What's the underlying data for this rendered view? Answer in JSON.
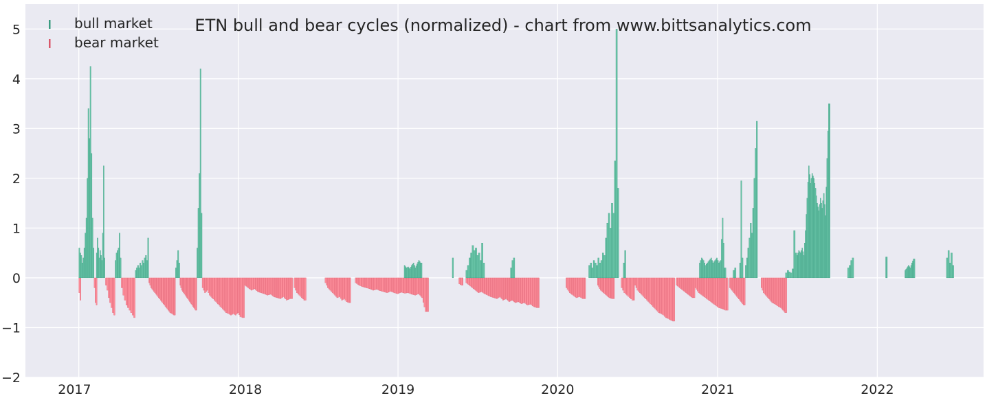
{
  "chart_data": {
    "type": "bar",
    "title": "ETN bull and bear cycles (normalized)  - chart from www.bittsanalytics.com",
    "xlabel": "",
    "ylabel": "",
    "ylim": [
      -2,
      5.5
    ],
    "x_range": [
      "2016-09-01",
      "2022-09-01"
    ],
    "y_ticks": [
      {
        "value": 5,
        "label": "5"
      },
      {
        "value": 4,
        "label": "4"
      },
      {
        "value": 3,
        "label": "3"
      },
      {
        "value": 2,
        "label": "2"
      },
      {
        "value": 1,
        "label": "1"
      },
      {
        "value": 0,
        "label": "0"
      },
      {
        "value": -1,
        "label": "−1"
      },
      {
        "value": -2,
        "label": "−2"
      }
    ],
    "x_ticks": [
      {
        "date": "2017-01-01",
        "label": "2017"
      },
      {
        "date": "2018-01-01",
        "label": "2018"
      },
      {
        "date": "2019-01-01",
        "label": "2019"
      },
      {
        "date": "2020-01-01",
        "label": "2020"
      },
      {
        "date": "2021-01-01",
        "label": "2021"
      },
      {
        "date": "2022-01-01",
        "label": "2022"
      }
    ],
    "grid": true,
    "legend_position": "top-left",
    "colors": {
      "background": "#eaeaf2",
      "grid": "#ffffff",
      "bull": "#66c2a5",
      "bull_edge": "#3a9c80",
      "bear": "#fc8d9a",
      "bear_edge": "#d9576a"
    },
    "series": [
      {
        "name": "bull market",
        "segments": [
          {
            "start": "2017-01-01",
            "end": "2017-02-05",
            "values": [
              0.6,
              0.5,
              0.45,
              0.3,
              0.4,
              0.6,
              0.9,
              1.2,
              2.0,
              3.4,
              2.8,
              4.25,
              2.5,
              1.2,
              0.6
            ]
          },
          {
            "start": "2017-02-10",
            "end": "2017-03-02",
            "values": [
              0.5,
              0.8,
              0.6,
              0.4,
              0.55,
              0.45,
              0.35,
              0.9,
              2.25,
              0.4
            ]
          },
          {
            "start": "2017-03-25",
            "end": "2017-04-08",
            "values": [
              0.35,
              0.5,
              0.55,
              0.6,
              0.9,
              0.4
            ]
          },
          {
            "start": "2017-05-10",
            "end": "2017-06-10",
            "values": [
              0.15,
              0.2,
              0.25,
              0.2,
              0.3,
              0.25,
              0.35,
              0.3,
              0.4,
              0.45,
              0.35,
              0.8
            ]
          },
          {
            "start": "2017-08-10",
            "end": "2017-08-20",
            "values": [
              0.2,
              0.35,
              0.55,
              0.3
            ]
          },
          {
            "start": "2017-09-28",
            "end": "2017-10-10",
            "values": [
              0.6,
              1.4,
              2.1,
              4.2,
              1.3
            ]
          },
          {
            "start": "2019-01-15",
            "end": "2019-02-25",
            "values": [
              0.25,
              0.2,
              0.22,
              0.18,
              0.25,
              0.3,
              0.2,
              0.28,
              0.35,
              0.3
            ]
          },
          {
            "start": "2019-05-05",
            "end": "2019-05-08",
            "values": [
              0.4
            ]
          },
          {
            "start": "2019-06-05",
            "end": "2019-07-18",
            "values": [
              0.15,
              0.25,
              0.4,
              0.5,
              0.65,
              0.55,
              0.6,
              0.45,
              0.5,
              0.35,
              0.7,
              0.3
            ]
          },
          {
            "start": "2019-09-15",
            "end": "2019-09-25",
            "values": [
              0.2,
              0.35,
              0.4
            ]
          },
          {
            "start": "2020-03-12",
            "end": "2020-05-20",
            "values": [
              0.25,
              0.3,
              0.2,
              0.35,
              0.3,
              0.25,
              0.4,
              0.3,
              0.35,
              0.5,
              0.45,
              0.8,
              1.1,
              1.3,
              1.0,
              1.5,
              1.3,
              2.35,
              5.0,
              1.8
            ]
          },
          {
            "start": "2020-05-30",
            "end": "2020-06-05",
            "values": [
              0.3,
              0.55
            ]
          },
          {
            "start": "2020-11-20",
            "end": "2021-01-20",
            "values": [
              0.3,
              0.4,
              0.35,
              0.25,
              0.3,
              0.35,
              0.4,
              0.3,
              0.35,
              0.4,
              0.3,
              0.35,
              1.2,
              0.2
            ]
          },
          {
            "start": "2021-02-05",
            "end": "2021-02-12",
            "values": [
              0.15,
              0.2
            ]
          },
          {
            "start": "2021-02-20",
            "end": "2021-02-28",
            "values": [
              0.3,
              1.95,
              0.4
            ]
          },
          {
            "start": "2021-03-05",
            "end": "2021-04-02",
            "values": [
              0.25,
              0.4,
              0.6,
              0.8,
              1.1,
              0.9,
              1.4,
              2.0,
              2.6,
              3.15
            ]
          },
          {
            "start": "2021-06-05",
            "end": "2021-07-01",
            "values": [
              0.1,
              0.15,
              0.12,
              0.1,
              0.18,
              0.95,
              0.5
            ]
          },
          {
            "start": "2021-07-01",
            "end": "2021-09-15",
            "values": [
              0.45,
              0.55,
              0.5,
              0.6,
              0.45,
              0.95,
              1.6,
              2.25,
              1.9,
              2.1,
              2.0,
              1.8,
              1.5,
              1.35,
              1.6,
              1.4,
              1.7,
              1.25,
              2.4,
              3.5
            ]
          },
          {
            "start": "2021-10-25",
            "end": "2021-11-08",
            "values": [
              0.2,
              0.25,
              0.35,
              0.4
            ]
          },
          {
            "start": "2022-01-20",
            "end": "2022-01-24",
            "values": [
              0.42
            ]
          },
          {
            "start": "2022-03-05",
            "end": "2022-03-28",
            "values": [
              0.15,
              0.2,
              0.25,
              0.2,
              0.3,
              0.38
            ]
          },
          {
            "start": "2022-06-08",
            "end": "2022-06-25",
            "values": [
              0.4,
              0.55,
              0.3,
              0.5,
              0.25
            ]
          }
        ]
      },
      {
        "name": "bear market",
        "segments": [
          {
            "start": "2017-01-01",
            "end": "2017-01-06",
            "values": [
              -0.3,
              -0.45
            ]
          },
          {
            "start": "2017-02-05",
            "end": "2017-02-12",
            "values": [
              -0.2,
              -0.5,
              -0.55
            ]
          },
          {
            "start": "2017-03-03",
            "end": "2017-03-25",
            "values": [
              -0.15,
              -0.25,
              -0.4,
              -0.5,
              -0.6,
              -0.7,
              -0.75
            ]
          },
          {
            "start": "2017-04-08",
            "end": "2017-05-10",
            "values": [
              -0.2,
              -0.35,
              -0.45,
              -0.55,
              -0.6,
              -0.65,
              -0.7,
              -0.75,
              -0.8
            ]
          },
          {
            "start": "2017-06-10",
            "end": "2017-08-10",
            "values": [
              -0.1,
              -0.2,
              -0.25,
              -0.3,
              -0.35,
              -0.4,
              -0.45,
              -0.5,
              -0.55,
              -0.6,
              -0.65,
              -0.7,
              -0.72,
              -0.75
            ]
          },
          {
            "start": "2017-08-20",
            "end": "2017-09-28",
            "values": [
              -0.15,
              -0.25,
              -0.3,
              -0.35,
              -0.4,
              -0.45,
              -0.5,
              -0.55,
              -0.6,
              -0.65
            ]
          },
          {
            "start": "2017-10-10",
            "end": "2018-01-15",
            "values": [
              -0.2,
              -0.3,
              -0.25,
              -0.35,
              -0.4,
              -0.45,
              -0.5,
              -0.55,
              -0.6,
              -0.65,
              -0.7,
              -0.72,
              -0.75,
              -0.72,
              -0.75,
              -0.7,
              -0.78,
              -0.8
            ]
          },
          {
            "start": "2018-01-15",
            "end": "2018-05-05",
            "values": [
              -0.15,
              -0.2,
              -0.25,
              -0.22,
              -0.28,
              -0.3,
              -0.32,
              -0.35,
              -0.33,
              -0.38,
              -0.4,
              -0.42,
              -0.38,
              -0.45,
              -0.42
            ]
          },
          {
            "start": "2018-05-08",
            "end": "2018-06-05",
            "values": [
              -0.2,
              -0.3,
              -0.35,
              -0.4,
              -0.45
            ]
          },
          {
            "start": "2018-07-18",
            "end": "2018-09-15",
            "values": [
              -0.1,
              -0.2,
              -0.25,
              -0.3,
              -0.35,
              -0.4,
              -0.38,
              -0.45,
              -0.42,
              -0.48,
              -0.5
            ]
          },
          {
            "start": "2018-09-25",
            "end": "2019-03-12",
            "values": [
              -0.1,
              -0.15,
              -0.18,
              -0.2,
              -0.22,
              -0.25,
              -0.23,
              -0.26,
              -0.28,
              -0.3,
              -0.27,
              -0.3,
              -0.32,
              -0.29,
              -0.31,
              -0.3,
              -0.33,
              -0.35,
              -0.32,
              -0.4,
              -0.68
            ]
          },
          {
            "start": "2019-05-20",
            "end": "2019-05-30",
            "values": [
              -0.12,
              -0.15
            ]
          },
          {
            "start": "2019-06-05",
            "end": "2019-11-20",
            "values": [
              -0.1,
              -0.15,
              -0.2,
              -0.25,
              -0.3,
              -0.28,
              -0.32,
              -0.35,
              -0.38,
              -0.4,
              -0.42,
              -0.38,
              -0.45,
              -0.42,
              -0.48,
              -0.45,
              -0.5,
              -0.48,
              -0.52,
              -0.5,
              -0.55,
              -0.53,
              -0.58,
              -0.6
            ]
          },
          {
            "start": "2020-01-20",
            "end": "2020-03-05",
            "values": [
              -0.2,
              -0.3,
              -0.35,
              -0.4,
              -0.38,
              -0.42
            ]
          },
          {
            "start": "2020-04-01",
            "end": "2020-05-10",
            "values": [
              -0.15,
              -0.25,
              -0.3,
              -0.35,
              -0.4,
              -0.42
            ]
          },
          {
            "start": "2020-05-25",
            "end": "2020-06-25",
            "values": [
              -0.2,
              -0.3,
              -0.35,
              -0.4,
              -0.45
            ]
          },
          {
            "start": "2020-06-25",
            "end": "2020-09-25",
            "values": [
              -0.15,
              -0.25,
              -0.3,
              -0.35,
              -0.4,
              -0.45,
              -0.5,
              -0.55,
              -0.6,
              -0.65,
              -0.7,
              -0.72,
              -0.75,
              -0.8,
              -0.82,
              -0.85,
              -0.87
            ]
          },
          {
            "start": "2020-09-28",
            "end": "2020-11-10",
            "values": [
              -0.15,
              -0.2,
              -0.25,
              -0.3,
              -0.35,
              -0.4
            ]
          },
          {
            "start": "2020-11-10",
            "end": "2021-01-25",
            "values": [
              -0.2,
              -0.3,
              -0.35,
              -0.4,
              -0.45,
              -0.5,
              -0.55,
              -0.6,
              -0.62,
              -0.65
            ]
          },
          {
            "start": "2021-01-28",
            "end": "2021-03-05",
            "values": [
              -0.2,
              -0.25,
              -0.3,
              -0.35,
              -0.4,
              -0.45,
              -0.5,
              -0.55
            ]
          },
          {
            "start": "2021-04-10",
            "end": "2021-06-08",
            "values": [
              -0.2,
              -0.3,
              -0.35,
              -0.4,
              -0.45,
              -0.5,
              -0.52,
              -0.55,
              -0.58,
              -0.6,
              -0.65,
              -0.7
            ]
          }
        ]
      }
    ]
  }
}
